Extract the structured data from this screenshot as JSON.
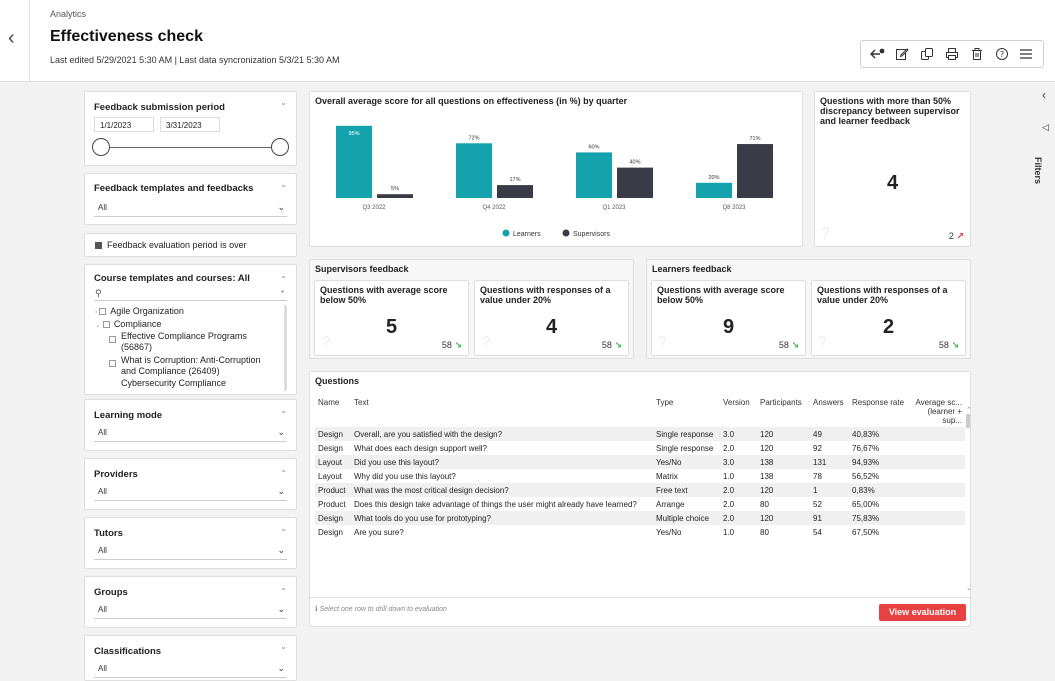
{
  "header": {
    "breadcrumb": "Analytics",
    "title": "Effectiveness check",
    "subtitle": "Last edited 5/29/2021 5:30 AM | Last data syncronization 5/3/21 5:30 AM"
  },
  "rail": {
    "filters_label": "Filters"
  },
  "filters": {
    "period": {
      "title": "Feedback submission period",
      "from": "1/1/2023",
      "to": "3/31/2023"
    },
    "templates": {
      "title": "Feedback templates and feedbacks",
      "value": "All"
    },
    "evaluation_over": {
      "label": "Feedback evaluation period is over"
    },
    "courses": {
      "title": "Course templates and courses: All",
      "tree": [
        "Agile Organization",
        "Compliance",
        "Effective Compliance Programs (56867)",
        "What is Corruption: Anti-Corruption and Compliance (26409)",
        "Cybersecurity Compliance"
      ]
    },
    "learning_mode": {
      "title": "Learning mode",
      "value": "All"
    },
    "providers": {
      "title": "Providers",
      "value": "All"
    },
    "tutors": {
      "title": "Tutors",
      "value": "All"
    },
    "groups": {
      "title": "Groups",
      "value": "All"
    },
    "classifications": {
      "title": "Classifications",
      "value": "All"
    }
  },
  "chart_data": {
    "type": "bar",
    "title": "Overall average score for all questions on effectiveness (in %) by quarter",
    "categories": [
      "Q3 2022",
      "Q4 2022",
      "Q1 2023",
      "Q8 2023"
    ],
    "series": [
      {
        "name": "Learners",
        "color": "#14a3ad",
        "values": [
          95,
          72,
          60,
          20
        ],
        "labels": [
          "95%",
          "72%",
          "60%",
          "20%"
        ]
      },
      {
        "name": "Supervisors",
        "color": "#3b3b47",
        "values": [
          5,
          17,
          40,
          71
        ],
        "labels": [
          "5%",
          "17%",
          "40%",
          "71%"
        ]
      }
    ],
    "ylim": [
      0,
      100
    ]
  },
  "discrepancy": {
    "title": "Questions with more than 50% discrepancy between supervisor and learner feedback",
    "value": "4",
    "foot": "2"
  },
  "supervisors": {
    "title": "Supervisors feedback",
    "avg": {
      "title": "Questions with average score below 50%",
      "value": "5",
      "foot": "58"
    },
    "under": {
      "title": "Questions with responses of a value under 20%",
      "value": "4",
      "foot": "58"
    }
  },
  "learners": {
    "title": "Learners feedback",
    "avg": {
      "title": "Questions with average score below 50%",
      "value": "9",
      "foot": "58"
    },
    "under": {
      "title": "Questions with responses of a value under 20%",
      "value": "2",
      "foot": "58"
    }
  },
  "questions": {
    "title": "Questions",
    "columns": [
      "Name",
      "Text",
      "Type",
      "Version",
      "Participants",
      "Answers",
      "Response rate",
      "Average sc... (learner + sup..."
    ],
    "rows": [
      [
        "Design",
        "Overall, are you satisfied with the design?",
        "Single response",
        "3.0",
        "120",
        "49",
        "40,83%"
      ],
      [
        "Design",
        "What does each design support well?",
        "Single response",
        "2.0",
        "120",
        "92",
        "76,67%"
      ],
      [
        "Layout",
        "Did you use this layout?",
        "Yes/No",
        "3.0",
        "138",
        "131",
        "94,93%"
      ],
      [
        "Layout",
        "Why did you use this layout?",
        "Matrix",
        "1.0",
        "138",
        "78",
        "56,52%"
      ],
      [
        "Product",
        "What was the most critical design decision?",
        "Free text",
        "2.0",
        "120",
        "1",
        "0,83%"
      ],
      [
        "Product",
        "Does this design take advantage of things the user might already have learned?",
        "Arrange",
        "2.0",
        "80",
        "52",
        "65,00%"
      ],
      [
        "Design",
        "What tools do you use for prototyping?",
        "Multiple choice",
        "2.0",
        "120",
        "91",
        "75,83%"
      ],
      [
        "Design",
        "Are you sure?",
        "Yes/No",
        "1.0",
        "80",
        "54",
        "67,50%"
      ]
    ],
    "hint": "Select one row to drill down to evaluation",
    "action": "View evaluation"
  }
}
